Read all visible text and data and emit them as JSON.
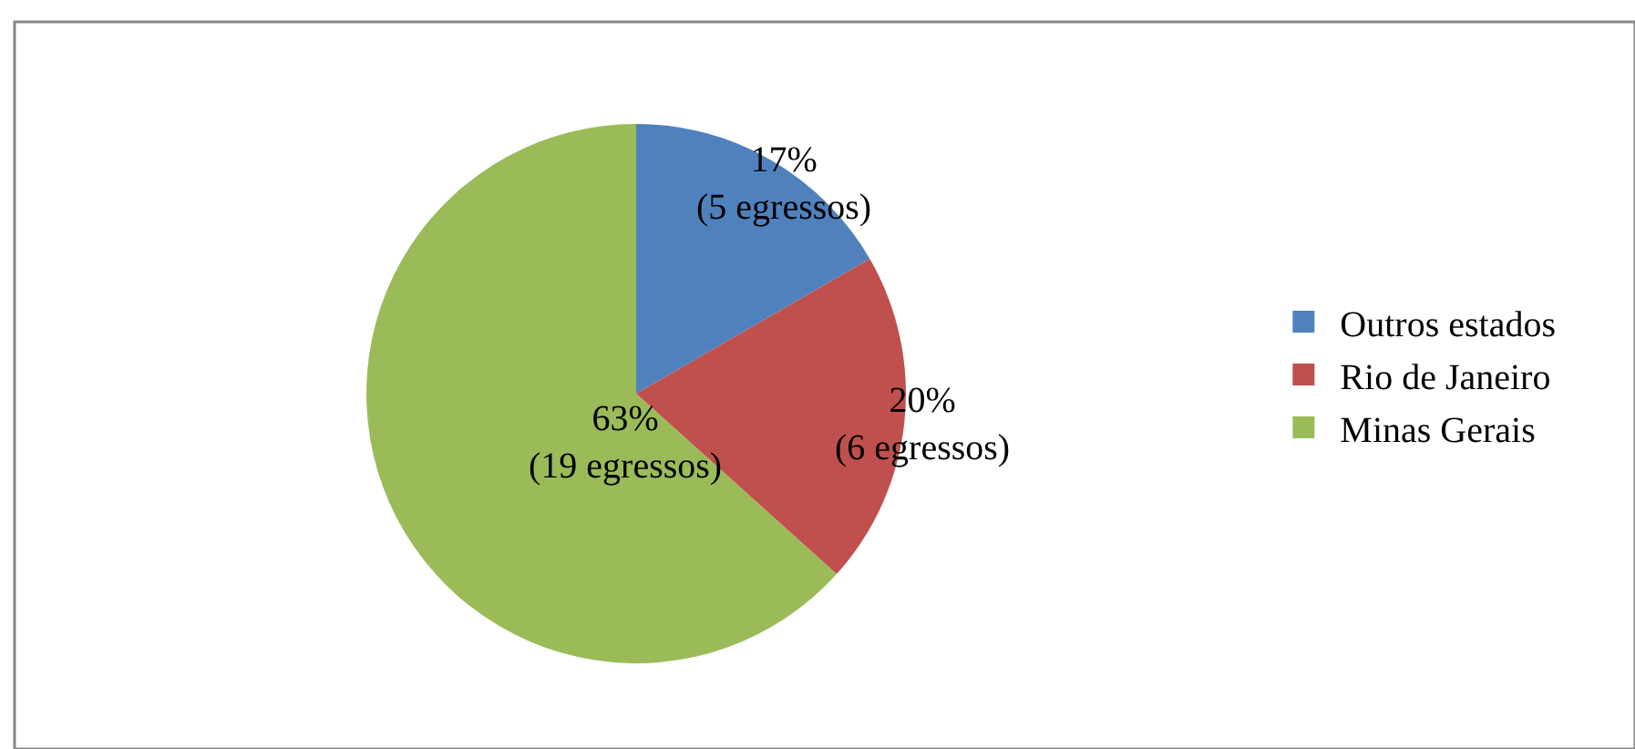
{
  "chart_data": {
    "type": "pie",
    "categories": [
      "Outros estados",
      "Rio de Janeiro",
      "Minas Gerais"
    ],
    "values": [
      5,
      6,
      19
    ],
    "colors": [
      "#4f81bd",
      "#c0504d",
      "#9bbb59"
    ],
    "value_labels": [
      "17%\n(5 egressos)",
      "20%\n(6 egressos)",
      "63%\n(19 egressos)"
    ],
    "legend": "right"
  }
}
